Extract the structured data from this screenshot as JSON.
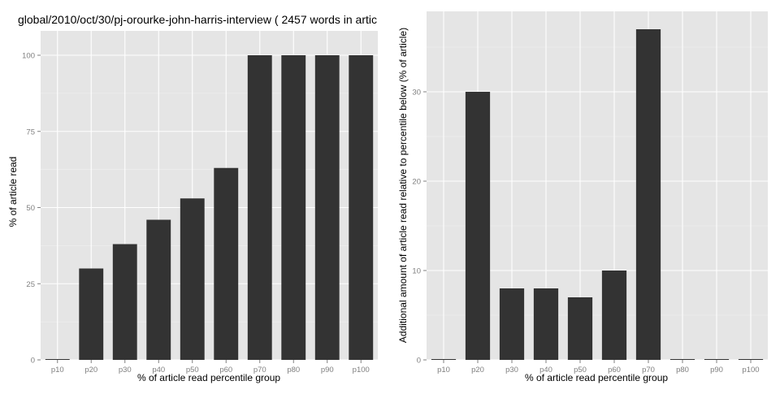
{
  "chart_data": [
    {
      "type": "bar",
      "title": "global/2010/oct/30/pj-orourke-john-harris-interview ( 2457 words in artic",
      "xlabel": "% of article read percentile group",
      "ylabel": "% of article read",
      "categories": [
        "p10",
        "p20",
        "p30",
        "p40",
        "p50",
        "p60",
        "p70",
        "p80",
        "p90",
        "p100"
      ],
      "values": [
        0,
        30,
        38,
        46,
        53,
        63,
        100,
        100,
        100,
        100
      ],
      "ylim": [
        0,
        108
      ],
      "yticks": [
        0,
        25,
        50,
        75,
        100
      ],
      "bar_color": "#333333",
      "panel_bg": "#e5e5e5",
      "grid": true
    },
    {
      "type": "bar",
      "title": "",
      "xlabel": "% of article read percentile group",
      "ylabel": "Additional amount of article read relative to percentile below (% of article)",
      "categories": [
        "p10",
        "p20",
        "p30",
        "p40",
        "p50",
        "p60",
        "p70",
        "p80",
        "p90",
        "p100"
      ],
      "values": [
        0,
        30,
        8,
        8,
        7,
        10,
        37,
        0,
        0,
        0
      ],
      "ylim": [
        0,
        39
      ],
      "yticks": [
        0,
        10,
        20,
        30
      ],
      "bar_color": "#333333",
      "panel_bg": "#e5e5e5",
      "grid": true
    }
  ]
}
